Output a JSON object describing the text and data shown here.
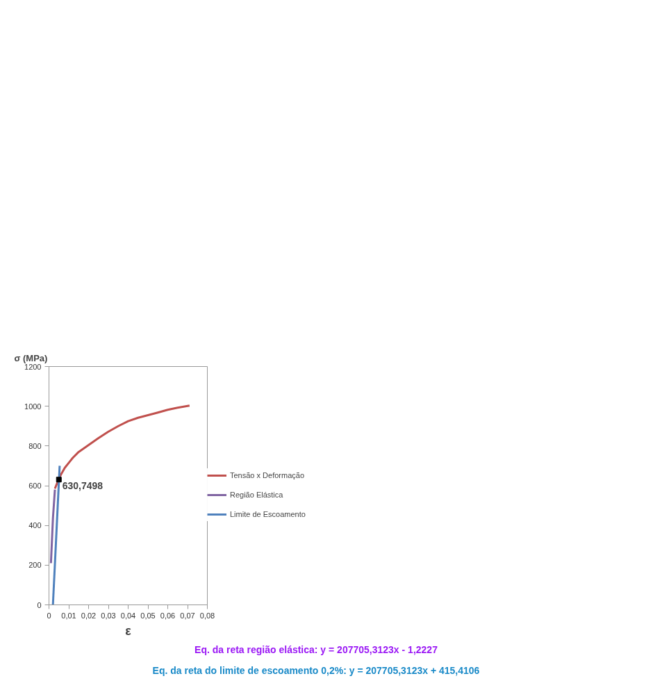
{
  "chart_data": {
    "type": "line",
    "xlabel": "ε",
    "ylabel": "σ (MPa)",
    "xlim": [
      0,
      0.08
    ],
    "ylim": [
      0,
      1200
    ],
    "xticks": [
      0,
      {
        "value": 0.01,
        "label": "0,01"
      },
      {
        "value": 0.02,
        "label": "0,02"
      },
      {
        "value": 0.03,
        "label": "0,03"
      },
      {
        "value": 0.04,
        "label": "0,04"
      },
      {
        "value": 0.05,
        "label": "0,05"
      },
      {
        "value": 0.06,
        "label": "0,06"
      },
      {
        "value": 0.07,
        "label": "0,07"
      },
      {
        "value": 0.08,
        "label": "0,08"
      }
    ],
    "yticks": [
      0,
      200,
      400,
      600,
      800,
      1000,
      1200
    ],
    "grid": false,
    "legend": "right",
    "marker": "none",
    "line_style": "solid",
    "series": [
      {
        "name": "Tensão x Deformação",
        "color": "#c0504d",
        "x": [
          0.003,
          0.004,
          0.005,
          0.006,
          0.008,
          0.01,
          0.012,
          0.015,
          0.02,
          0.025,
          0.03,
          0.035,
          0.04,
          0.045,
          0.05,
          0.055,
          0.06,
          0.065,
          0.071
        ],
        "values": [
          585,
          610,
          630,
          655,
          690,
          715,
          740,
          770,
          805,
          840,
          872,
          900,
          925,
          942,
          955,
          968,
          982,
          993,
          1003
        ]
      },
      {
        "name": "Região Elástica",
        "color": "#8064a2",
        "x": [
          0.001,
          0.002,
          0.003
        ],
        "values": [
          210,
          435,
          580
        ]
      },
      {
        "name": "Limite de Escoamento",
        "color": "#4f81bd",
        "x": [
          0.002,
          0.0054
        ],
        "values": [
          0,
          700
        ]
      }
    ],
    "annotations": [
      {
        "text": "630,7498",
        "x": 0.005,
        "y": 630.7498
      },
      "Eq. da reta região elástica: y = 207705,3123x - 1,2227",
      "Eq. da reta do limite de escoamento 0,2%: y = 207705,3123x + 415,4106"
    ]
  }
}
